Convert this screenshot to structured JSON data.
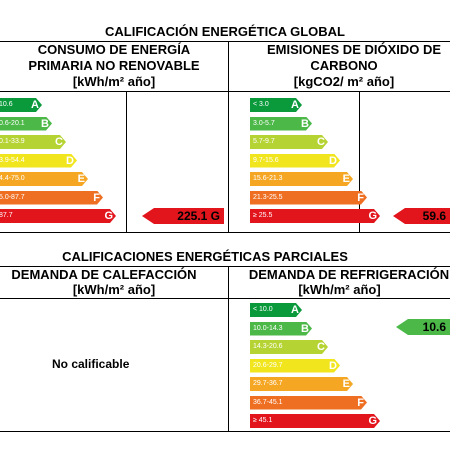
{
  "global": {
    "title": "CALIFICACIÓN ENERGÉTICA GLOBAL",
    "left": {
      "header": [
        "CONSUMO DE ENERGÍA",
        "PRIMARIA NO RENOVABLE",
        "[kWh/m² año]"
      ],
      "bands": [
        {
          "range": "10.6",
          "letter": "A"
        },
        {
          "range": "0.6-20.1",
          "letter": "B"
        },
        {
          "range": "0.1-33.9",
          "letter": "C"
        },
        {
          "range": "3.9-54.4",
          "letter": "D"
        },
        {
          "range": "4.4-75.0",
          "letter": "E"
        },
        {
          "range": "5.0-87.7",
          "letter": "F"
        },
        {
          "range": "87.7",
          "letter": "G"
        }
      ],
      "value": "225.1 G"
    },
    "right": {
      "header": [
        "EMISIONES DE DIÓXIDO DE",
        "CARBONO",
        "[kgCO2/ m² año]"
      ],
      "bands": [
        {
          "range": "< 3.0",
          "letter": "A"
        },
        {
          "range": "3.0-5.7",
          "letter": "B"
        },
        {
          "range": "5.7-9.7",
          "letter": "C"
        },
        {
          "range": "9.7-15.6",
          "letter": "D"
        },
        {
          "range": "15.6-21.3",
          "letter": "E"
        },
        {
          "range": "21.3-25.5",
          "letter": "F"
        },
        {
          "range": "≥ 25.5",
          "letter": "G"
        }
      ],
      "value": "59.6"
    }
  },
  "partial": {
    "title": "CALIFICACIONES ENERGÉTICAS PARCIALES",
    "left": {
      "header": [
        "DEMANDA DE CALEFACCIÓN",
        "[kWh/m² año]"
      ],
      "value_text": "No calificable"
    },
    "right": {
      "header": [
        "DEMANDA DE REFRIGERACIÓN",
        "[kWh/m² año]"
      ],
      "bands": [
        {
          "range": "< 10.0",
          "letter": "A"
        },
        {
          "range": "10.0-14.3",
          "letter": "B"
        },
        {
          "range": "14.3-20.6",
          "letter": "C"
        },
        {
          "range": "20.6-29.7",
          "letter": "D"
        },
        {
          "range": "29.7-36.7",
          "letter": "E"
        },
        {
          "range": "36.7-45.1",
          "letter": "F"
        },
        {
          "range": "≥ 45.1",
          "letter": "G"
        }
      ],
      "value": "10.6"
    }
  },
  "colors": {
    "A": "#0a9a3c",
    "B": "#4cb848",
    "C": "#b6d334",
    "D": "#f1e51d",
    "E": "#f5a623",
    "F": "#ee6f22",
    "G": "#e2151d"
  }
}
